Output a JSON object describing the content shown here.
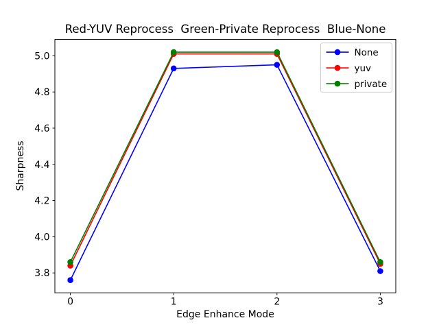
{
  "chart_data": {
    "type": "line",
    "title": "Red-YUV Reprocess  Green-Private Reprocess  Blue-None",
    "xlabel": "Edge Enhance Mode",
    "ylabel": "Sharpness",
    "x": [
      0,
      1,
      2,
      3
    ],
    "series": [
      {
        "name": "None",
        "color": "#0000ff",
        "values": [
          3.76,
          4.93,
          4.95,
          3.81
        ]
      },
      {
        "name": "yuv",
        "color": "#ff0000",
        "values": [
          3.84,
          5.01,
          5.01,
          3.85
        ]
      },
      {
        "name": "private",
        "color": "#008000",
        "values": [
          3.86,
          5.02,
          5.02,
          3.86
        ]
      }
    ],
    "xticks": [
      "0",
      "1",
      "2",
      "3"
    ],
    "xtick_values": [
      0,
      1,
      2,
      3
    ],
    "yticks": [
      "3.8",
      "4.0",
      "4.2",
      "4.4",
      "4.6",
      "4.8",
      "5.0"
    ],
    "ytick_values": [
      3.8,
      4.0,
      4.2,
      4.4,
      4.6,
      4.8,
      5.0
    ],
    "xlim": [
      -0.15,
      3.15
    ],
    "ylim": [
      3.69,
      5.09
    ],
    "grid": false,
    "legend": {
      "position": "upper right",
      "entries": [
        "None",
        "yuv",
        "private"
      ]
    },
    "axis_color": "#000000",
    "legend_border_color": "#cccccc",
    "background": "#ffffff"
  }
}
